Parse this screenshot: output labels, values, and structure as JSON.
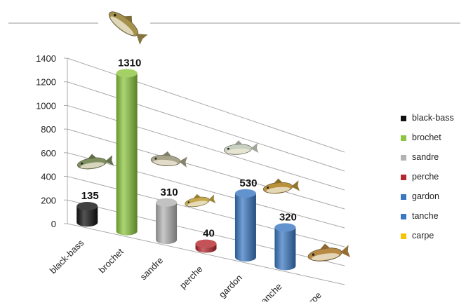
{
  "chart_data": {
    "type": "bar",
    "style": "3d-cylinder",
    "categories": [
      "black-bass",
      "brochet",
      "sandre",
      "perche",
      "gardon",
      "tanche",
      "carpe"
    ],
    "values": [
      135,
      1310,
      310,
      40,
      530,
      320,
      null
    ],
    "data_labels": [
      "135",
      "1310",
      "310",
      "40",
      "530",
      "320",
      ""
    ],
    "colors": [
      "#111111",
      "#8cc63e",
      "#b3b3b3",
      "#b5282e",
      "#3b78c3",
      "#3b78c3",
      "#f5c400"
    ],
    "ylim": [
      0,
      1400
    ],
    "yticks": [
      0,
      200,
      400,
      600,
      800,
      1000,
      1200,
      1400
    ],
    "ytick_labels": [
      "0",
      "200",
      "400",
      "600",
      "800",
      "1000",
      "1200",
      "1400"
    ],
    "grid": true,
    "legend_position": "right",
    "legend": [
      {
        "label": "black-bass",
        "color": "#111111"
      },
      {
        "label": "brochet",
        "color": "#8cc63e"
      },
      {
        "label": "sandre",
        "color": "#b3b3b3"
      },
      {
        "label": "perche",
        "color": "#b5282e"
      },
      {
        "label": "gardon",
        "color": "#3b78c3"
      },
      {
        "label": "tanche",
        "color": "#3b78c3"
      },
      {
        "label": "carpe",
        "color": "#f5c400"
      }
    ],
    "fish_images": [
      "black-bass",
      "brochet",
      "sandre",
      "perche",
      "gardon",
      "tanche",
      "carpe"
    ],
    "title": "",
    "xlabel": "",
    "ylabel": ""
  }
}
